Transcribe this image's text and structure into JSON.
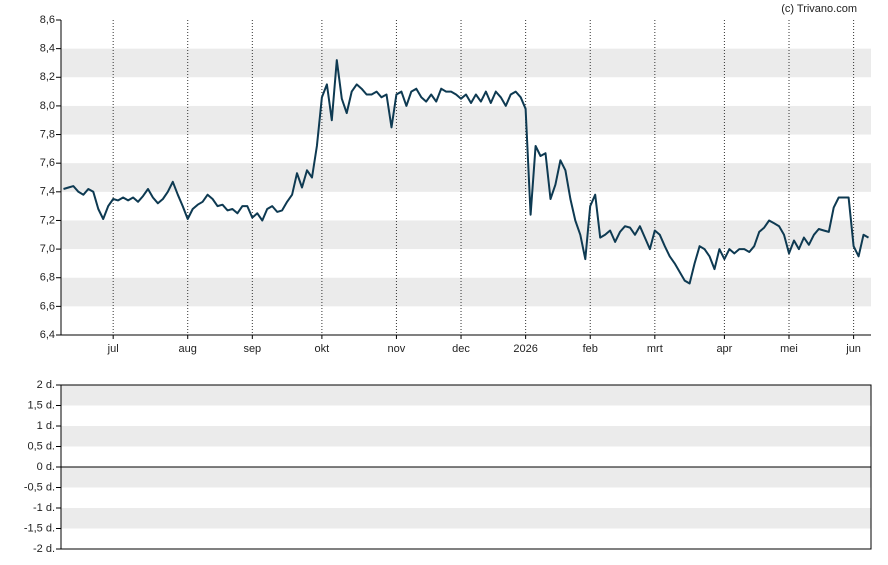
{
  "chart_data": [
    {
      "type": "line",
      "credit": "(c) Trivano.com",
      "categories": [
        null,
        null,
        null,
        null,
        null,
        null,
        null,
        null,
        null,
        null,
        "jul",
        null,
        null,
        null,
        null,
        null,
        null,
        null,
        null,
        null,
        null,
        null,
        null,
        null,
        null,
        "aug",
        null,
        null,
        null,
        null,
        null,
        null,
        null,
        null,
        null,
        null,
        null,
        null,
        "sep",
        null,
        null,
        null,
        null,
        null,
        null,
        null,
        null,
        null,
        null,
        null,
        null,
        null,
        "okt",
        null,
        null,
        null,
        null,
        null,
        null,
        null,
        null,
        null,
        null,
        null,
        null,
        null,
        null,
        "nov",
        null,
        null,
        null,
        null,
        null,
        null,
        null,
        null,
        null,
        null,
        null,
        null,
        "dec",
        null,
        null,
        null,
        null,
        null,
        null,
        null,
        null,
        null,
        null,
        null,
        null,
        "2026",
        null,
        null,
        null,
        null,
        null,
        null,
        null,
        null,
        null,
        null,
        null,
        null,
        "feb",
        null,
        null,
        null,
        null,
        null,
        null,
        null,
        null,
        null,
        null,
        null,
        null,
        "mrt",
        null,
        null,
        null,
        null,
        null,
        null,
        null,
        null,
        null,
        null,
        null,
        null,
        null,
        "apr",
        null,
        null,
        null,
        null,
        null,
        null,
        null,
        null,
        null,
        null,
        null,
        null,
        "mei",
        null,
        null,
        null,
        null,
        null,
        null,
        null,
        null,
        null,
        null,
        null,
        null,
        "jun",
        null,
        null,
        null
      ],
      "series": [
        {
          "color": "#0e3a52",
          "values": [
            7.42,
            7.43,
            7.44,
            7.4,
            7.38,
            7.42,
            7.4,
            7.28,
            7.21,
            7.3,
            7.35,
            7.34,
            7.36,
            7.34,
            7.36,
            7.33,
            7.37,
            7.42,
            7.36,
            7.32,
            7.35,
            7.4,
            7.47,
            7.38,
            7.3,
            7.21,
            7.28,
            7.31,
            7.33,
            7.38,
            7.35,
            7.3,
            7.31,
            7.27,
            7.28,
            7.25,
            7.3,
            7.3,
            7.22,
            7.25,
            7.2,
            7.28,
            7.3,
            7.26,
            7.27,
            7.33,
            7.38,
            7.53,
            7.43,
            7.55,
            7.5,
            7.72,
            8.06,
            8.15,
            7.9,
            8.32,
            8.05,
            7.95,
            8.1,
            8.15,
            8.12,
            8.08,
            8.08,
            8.1,
            8.06,
            8.08,
            7.85,
            8.08,
            8.1,
            8.0,
            8.1,
            8.12,
            8.06,
            8.03,
            8.08,
            8.03,
            8.12,
            8.1,
            8.1,
            8.08,
            8.05,
            8.08,
            8.02,
            8.08,
            8.03,
            8.1,
            8.02,
            8.1,
            8.06,
            8.0,
            8.08,
            8.1,
            8.06,
            7.98,
            7.24,
            7.72,
            7.65,
            7.67,
            7.35,
            7.45,
            7.62,
            7.55,
            7.35,
            7.2,
            7.1,
            6.93,
            7.3,
            7.38,
            7.08,
            7.1,
            7.13,
            7.05,
            7.12,
            7.16,
            7.15,
            7.1,
            7.16,
            7.08,
            7.0,
            7.13,
            7.1,
            7.02,
            6.95,
            6.9,
            6.84,
            6.78,
            6.76,
            6.9,
            7.02,
            7.0,
            6.95,
            6.86,
            7.0,
            6.93,
            7.0,
            6.97,
            7.0,
            7.0,
            6.98,
            7.02,
            7.12,
            7.15,
            7.2,
            7.18,
            7.16,
            7.1,
            6.97,
            7.06,
            7.0,
            7.08,
            7.03,
            7.1,
            7.14,
            7.13,
            7.12,
            7.29,
            7.36,
            7.36,
            7.36,
            7.02,
            6.95,
            7.1,
            7.08
          ]
        }
      ],
      "ylim": [
        6.4,
        8.6
      ],
      "yticks": [
        {
          "value": 6.4,
          "label": "6,4"
        },
        {
          "value": 6.6,
          "label": "6,6"
        },
        {
          "value": 6.8,
          "label": "6,8"
        },
        {
          "value": 7.0,
          "label": "7,0"
        },
        {
          "value": 7.2,
          "label": "7,2"
        },
        {
          "value": 7.4,
          "label": "7,4"
        },
        {
          "value": 7.6,
          "label": "7,6"
        },
        {
          "value": 7.8,
          "label": "7,8"
        },
        {
          "value": 8.0,
          "label": "8,0"
        },
        {
          "value": 8.2,
          "label": "8,2"
        },
        {
          "value": 8.4,
          "label": "8,4"
        },
        {
          "value": 8.6,
          "label": "8,6"
        }
      ],
      "grid": "bands",
      "band_color": "#ebebeb",
      "vertical_grid": true
    },
    {
      "type": "line",
      "ylim": [
        -2,
        2
      ],
      "yticks": [
        {
          "value": -2,
          "label": "-2 d."
        },
        {
          "value": -1.5,
          "label": "-1,5 d."
        },
        {
          "value": -1,
          "label": "-1 d."
        },
        {
          "value": -0.5,
          "label": "-0,5 d."
        },
        {
          "value": 0,
          "label": "0 d."
        },
        {
          "value": 0.5,
          "label": "0,5 d."
        },
        {
          "value": 1,
          "label": "1 d."
        },
        {
          "value": 1.5,
          "label": "1,5 d."
        },
        {
          "value": 2,
          "label": "2 d."
        }
      ],
      "grid": "bands",
      "band_color": "#ebebeb",
      "zero_line": true
    }
  ]
}
